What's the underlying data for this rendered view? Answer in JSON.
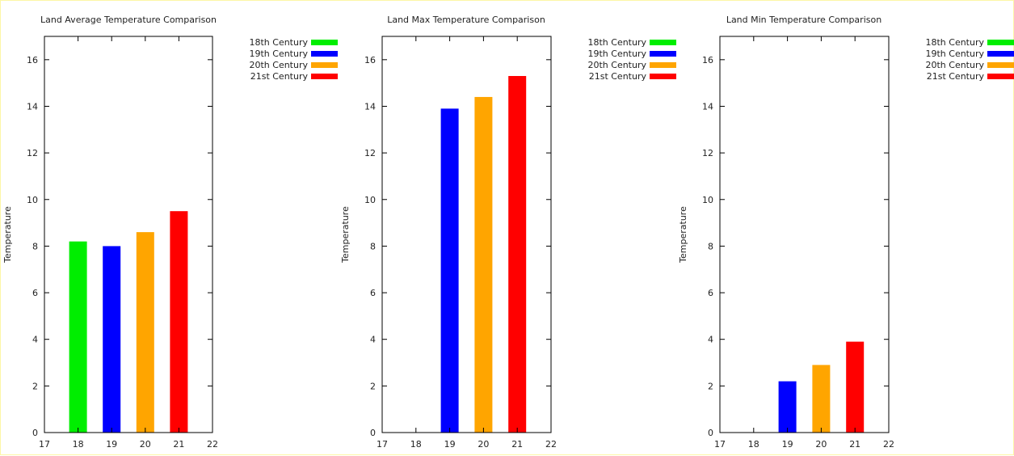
{
  "chart_data": [
    {
      "type": "bar",
      "title": "Land Average Temperature Comparison",
      "xlabel": "",
      "ylabel": "Temperature",
      "xlim": [
        17,
        22
      ],
      "ylim": [
        0,
        17
      ],
      "xticks": [
        17,
        18,
        19,
        20,
        21,
        22
      ],
      "yticks": [
        0,
        2,
        4,
        6,
        8,
        10,
        12,
        14,
        16
      ],
      "legend_position": "outside-right",
      "series": [
        {
          "name": "18th Century",
          "x": 18,
          "value": 8.2,
          "color": "#00ee00"
        },
        {
          "name": "19th Century",
          "x": 19,
          "value": 8.0,
          "color": "#0000ff"
        },
        {
          "name": "20th Century",
          "x": 20,
          "value": 8.6,
          "color": "#ffa500"
        },
        {
          "name": "21st Century",
          "x": 21,
          "value": 9.5,
          "color": "#ff0000"
        }
      ]
    },
    {
      "type": "bar",
      "title": "Land Max Temperature Comparison",
      "xlabel": "",
      "ylabel": "Temperature",
      "xlim": [
        17,
        22
      ],
      "ylim": [
        0,
        17
      ],
      "xticks": [
        17,
        18,
        19,
        20,
        21,
        22
      ],
      "yticks": [
        0,
        2,
        4,
        6,
        8,
        10,
        12,
        14,
        16
      ],
      "legend_position": "outside-right",
      "series": [
        {
          "name": "18th Century",
          "x": 18,
          "value": null,
          "color": "#00ee00"
        },
        {
          "name": "19th Century",
          "x": 19,
          "value": 13.9,
          "color": "#0000ff"
        },
        {
          "name": "20th Century",
          "x": 20,
          "value": 14.4,
          "color": "#ffa500"
        },
        {
          "name": "21st Century",
          "x": 21,
          "value": 15.3,
          "color": "#ff0000"
        }
      ]
    },
    {
      "type": "bar",
      "title": "Land Min Temperature Comparison",
      "xlabel": "",
      "ylabel": "Temperature",
      "xlim": [
        17,
        22
      ],
      "ylim": [
        0,
        17
      ],
      "xticks": [
        17,
        18,
        19,
        20,
        21,
        22
      ],
      "yticks": [
        0,
        2,
        4,
        6,
        8,
        10,
        12,
        14,
        16
      ],
      "legend_position": "outside-right",
      "series": [
        {
          "name": "18th Century",
          "x": 18,
          "value": null,
          "color": "#00ee00"
        },
        {
          "name": "19th Century",
          "x": 19,
          "value": 2.2,
          "color": "#0000ff"
        },
        {
          "name": "20th Century",
          "x": 20,
          "value": 2.9,
          "color": "#ffa500"
        },
        {
          "name": "21st Century",
          "x": 21,
          "value": 3.9,
          "color": "#ff0000"
        }
      ]
    }
  ]
}
